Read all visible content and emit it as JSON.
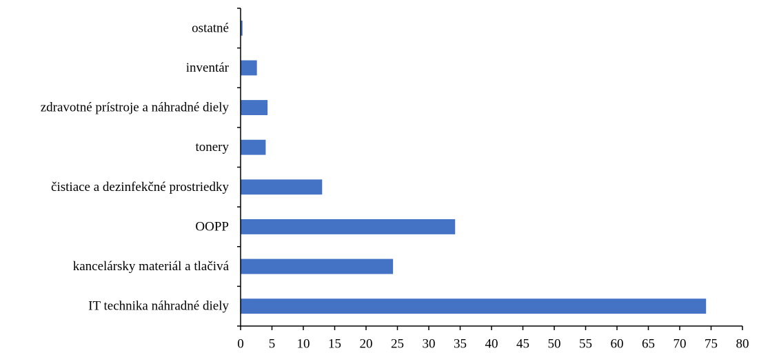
{
  "chart_data": {
    "type": "bar",
    "orientation": "horizontal",
    "title": "",
    "xlabel": "",
    "ylabel": "",
    "categories": [
      "IT technika náhradné diely",
      "kancelársky materiál a tlačivá",
      "OOPP",
      "čistiace a dezinfekčné prostriedky",
      "tonery",
      "zdravotné prístroje a náhradné diely",
      "inventár",
      "ostatné"
    ],
    "values": [
      74.2,
      24.3,
      34.2,
      13.0,
      4.0,
      4.3,
      2.6,
      0.3
    ],
    "xlim": [
      0,
      80
    ],
    "xticks": [
      "0",
      "5",
      "10",
      "15",
      "20",
      "25",
      "30",
      "35",
      "40",
      "45",
      "50",
      "55",
      "60",
      "65",
      "70",
      "75",
      "80"
    ],
    "grid": false,
    "legend": "none",
    "bar_color": "#4472C4"
  }
}
